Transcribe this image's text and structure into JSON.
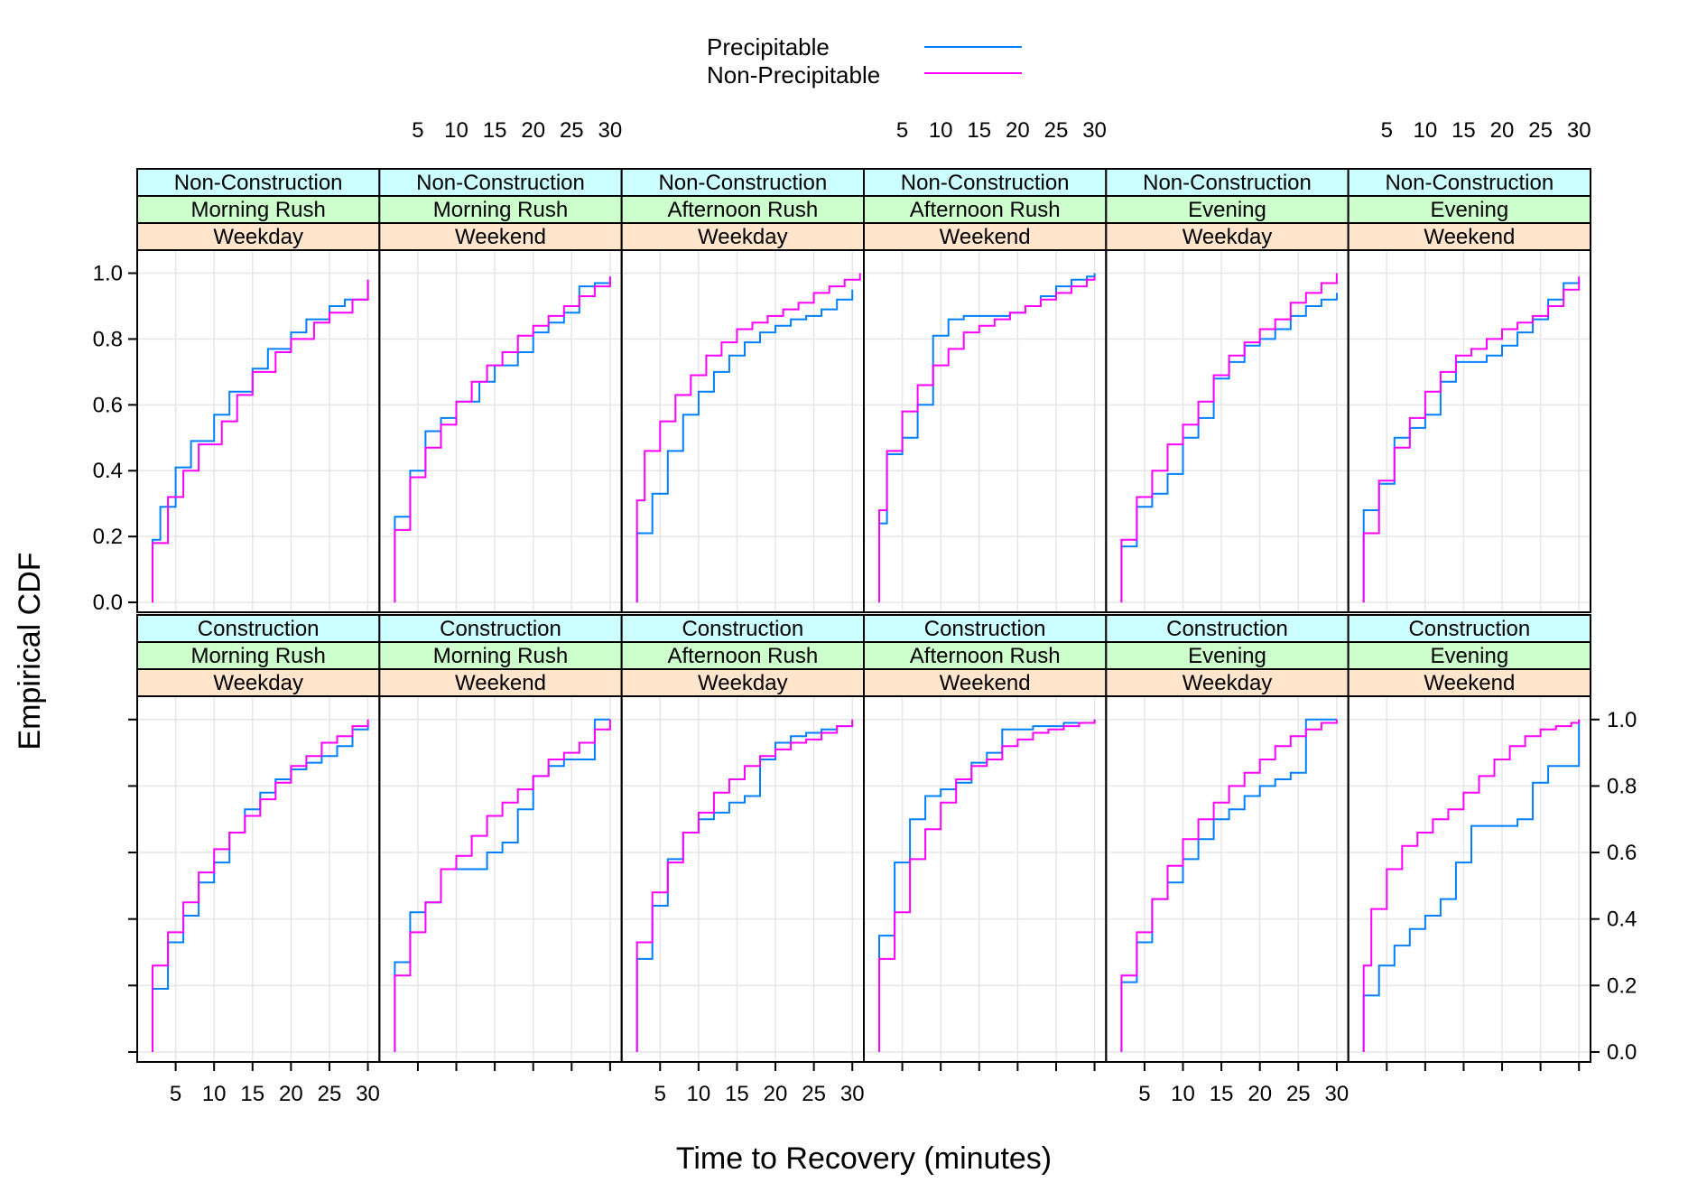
{
  "chart_data": {
    "type": "line",
    "step": true,
    "xlabel": "Time to Recovery (minutes)",
    "ylabel": "Empirical CDF",
    "xlim": [
      0,
      31.5
    ],
    "ylim": [
      -0.03,
      1.07
    ],
    "x_ticks": [
      5,
      10,
      15,
      20,
      25,
      30
    ],
    "y_ticks": [
      0.0,
      0.2,
      0.4,
      0.6,
      0.8,
      1.0
    ],
    "y_tick_labels": [
      "0.0",
      "0.2",
      "0.4",
      "0.6",
      "0.8",
      "1.0"
    ],
    "grid": true,
    "layout": {
      "columns": 6,
      "rows": 2
    },
    "legend": {
      "position": "top",
      "entries": [
        {
          "name": "Precipitable",
          "color": "#0080ff"
        },
        {
          "name": "Non-Precipitable",
          "color": "#ff00ff"
        }
      ]
    },
    "strip_colors": [
      "#ccffff",
      "#ccffcc",
      "#ffe5cc"
    ],
    "x_grid_step_values": [
      0,
      5,
      10,
      15,
      20,
      25,
      30
    ],
    "panels": [
      {
        "strips": [
          "Non-Construction",
          "Morning Rush",
          "Weekday"
        ],
        "series": [
          {
            "name": "Precipitable",
            "x": [
              2,
              3,
              5,
              7,
              10,
              12,
              15,
              17,
              20,
              22,
              25,
              27,
              30
            ],
            "y": [
              0.19,
              0.29,
              0.41,
              0.49,
              0.57,
              0.64,
              0.71,
              0.77,
              0.82,
              0.86,
              0.9,
              0.92,
              0.98
            ]
          },
          {
            "name": "Non-Precipitable",
            "x": [
              2,
              4,
              6,
              8,
              11,
              13,
              15,
              18,
              20,
              23,
              25,
              28,
              30
            ],
            "y": [
              0.18,
              0.32,
              0.4,
              0.48,
              0.55,
              0.63,
              0.7,
              0.76,
              0.8,
              0.85,
              0.88,
              0.92,
              0.98
            ]
          }
        ]
      },
      {
        "strips": [
          "Non-Construction",
          "Morning Rush",
          "Weekend"
        ],
        "series": [
          {
            "name": "Precipitable",
            "x": [
              2,
              4,
              6,
              8,
              10,
              13,
              15,
              18,
              20,
              22,
              24,
              26,
              28,
              30
            ],
            "y": [
              0.26,
              0.4,
              0.52,
              0.56,
              0.61,
              0.67,
              0.72,
              0.76,
              0.82,
              0.85,
              0.88,
              0.96,
              0.97,
              0.99
            ]
          },
          {
            "name": "Non-Precipitable",
            "x": [
              2,
              4,
              6,
              8,
              10,
              12,
              14,
              16,
              18,
              20,
              22,
              24,
              26,
              28,
              30
            ],
            "y": [
              0.22,
              0.38,
              0.47,
              0.54,
              0.61,
              0.67,
              0.72,
              0.76,
              0.81,
              0.84,
              0.87,
              0.9,
              0.93,
              0.96,
              0.99
            ]
          }
        ]
      },
      {
        "strips": [
          "Non-Construction",
          "Afternoon Rush",
          "Weekday"
        ],
        "series": [
          {
            "name": "Precipitable",
            "x": [
              2,
              4,
              6,
              8,
              10,
              12,
              14,
              16,
              18,
              20,
              22,
              24,
              26,
              28,
              30
            ],
            "y": [
              0.21,
              0.33,
              0.46,
              0.57,
              0.64,
              0.7,
              0.75,
              0.79,
              0.82,
              0.84,
              0.86,
              0.87,
              0.89,
              0.92,
              0.95
            ]
          },
          {
            "name": "Non-Precipitable",
            "x": [
              2,
              3,
              5,
              7,
              9,
              11,
              13,
              15,
              17,
              19,
              21,
              23,
              25,
              27,
              29,
              31
            ],
            "y": [
              0.31,
              0.46,
              0.55,
              0.63,
              0.69,
              0.75,
              0.79,
              0.83,
              0.85,
              0.87,
              0.89,
              0.91,
              0.94,
              0.96,
              0.98,
              1.0
            ]
          }
        ]
      },
      {
        "strips": [
          "Non-Construction",
          "Afternoon Rush",
          "Weekend"
        ],
        "series": [
          {
            "name": "Precipitable",
            "x": [
              2,
              3,
              5,
              7,
              9,
              11,
              13,
              15,
              17,
              19,
              21,
              23,
              25,
              27,
              29,
              30
            ],
            "y": [
              0.24,
              0.45,
              0.5,
              0.6,
              0.81,
              0.86,
              0.87,
              0.87,
              0.87,
              0.88,
              0.9,
              0.93,
              0.96,
              0.98,
              0.99,
              1.0
            ]
          },
          {
            "name": "Non-Precipitable",
            "x": [
              2,
              3,
              5,
              7,
              9,
              11,
              13,
              15,
              17,
              19,
              21,
              23,
              25,
              27,
              29,
              30
            ],
            "y": [
              0.28,
              0.46,
              0.58,
              0.66,
              0.72,
              0.77,
              0.82,
              0.84,
              0.86,
              0.88,
              0.9,
              0.92,
              0.94,
              0.96,
              0.98,
              0.99
            ]
          }
        ]
      },
      {
        "strips": [
          "Non-Construction",
          "Evening",
          "Weekday"
        ],
        "series": [
          {
            "name": "Precipitable",
            "x": [
              2,
              4,
              6,
              8,
              10,
              12,
              14,
              16,
              18,
              20,
              22,
              24,
              26,
              28,
              30
            ],
            "y": [
              0.17,
              0.29,
              0.33,
              0.39,
              0.5,
              0.56,
              0.68,
              0.73,
              0.78,
              0.8,
              0.83,
              0.87,
              0.9,
              0.92,
              0.94
            ]
          },
          {
            "name": "Non-Precipitable",
            "x": [
              2,
              4,
              6,
              8,
              10,
              12,
              14,
              16,
              18,
              20,
              22,
              24,
              26,
              28,
              30
            ],
            "y": [
              0.19,
              0.32,
              0.4,
              0.48,
              0.54,
              0.61,
              0.69,
              0.75,
              0.79,
              0.83,
              0.86,
              0.91,
              0.94,
              0.97,
              1.0
            ]
          }
        ]
      },
      {
        "strips": [
          "Non-Construction",
          "Evening",
          "Weekend"
        ],
        "series": [
          {
            "name": "Precipitable",
            "x": [
              2,
              4,
              6,
              8,
              10,
              12,
              14,
              16,
              18,
              20,
              22,
              24,
              26,
              28,
              30
            ],
            "y": [
              0.28,
              0.36,
              0.5,
              0.53,
              0.57,
              0.67,
              0.73,
              0.73,
              0.75,
              0.78,
              0.82,
              0.86,
              0.92,
              0.97,
              0.98
            ]
          },
          {
            "name": "Non-Precipitable",
            "x": [
              2,
              4,
              6,
              8,
              10,
              12,
              14,
              16,
              18,
              20,
              22,
              24,
              26,
              28,
              30
            ],
            "y": [
              0.21,
              0.37,
              0.47,
              0.56,
              0.64,
              0.7,
              0.75,
              0.77,
              0.8,
              0.83,
              0.85,
              0.87,
              0.9,
              0.95,
              0.99
            ]
          }
        ]
      },
      {
        "strips": [
          "Construction",
          "Morning Rush",
          "Weekday"
        ],
        "series": [
          {
            "name": "Precipitable",
            "x": [
              2,
              4,
              6,
              8,
              10,
              12,
              14,
              16,
              18,
              20,
              22,
              24,
              26,
              28,
              30
            ],
            "y": [
              0.19,
              0.33,
              0.41,
              0.51,
              0.57,
              0.66,
              0.73,
              0.78,
              0.82,
              0.85,
              0.87,
              0.89,
              0.92,
              0.97,
              0.99
            ]
          },
          {
            "name": "Non-Precipitable",
            "x": [
              2,
              4,
              6,
              8,
              10,
              12,
              14,
              16,
              18,
              20,
              22,
              24,
              26,
              28,
              30
            ],
            "y": [
              0.26,
              0.36,
              0.45,
              0.54,
              0.61,
              0.66,
              0.71,
              0.76,
              0.81,
              0.86,
              0.89,
              0.93,
              0.95,
              0.98,
              1.0
            ]
          }
        ]
      },
      {
        "strips": [
          "Construction",
          "Morning Rush",
          "Weekend"
        ],
        "series": [
          {
            "name": "Precipitable",
            "x": [
              2,
              4,
              6,
              8,
              10,
              12,
              14,
              16,
              18,
              20,
              22,
              24,
              26,
              28,
              30
            ],
            "y": [
              0.27,
              0.42,
              0.45,
              0.55,
              0.55,
              0.55,
              0.6,
              0.63,
              0.73,
              0.83,
              0.86,
              0.88,
              0.88,
              1.0,
              1.0
            ]
          },
          {
            "name": "Non-Precipitable",
            "x": [
              2,
              4,
              6,
              8,
              10,
              12,
              14,
              16,
              18,
              20,
              22,
              24,
              26,
              28,
              30
            ],
            "y": [
              0.23,
              0.36,
              0.45,
              0.55,
              0.59,
              0.65,
              0.71,
              0.75,
              0.79,
              0.83,
              0.88,
              0.9,
              0.93,
              0.97,
              1.0
            ]
          }
        ]
      },
      {
        "strips": [
          "Construction",
          "Afternoon Rush",
          "Weekday"
        ],
        "series": [
          {
            "name": "Precipitable",
            "x": [
              2,
              4,
              6,
              8,
              10,
              12,
              14,
              16,
              18,
              20,
              22,
              24,
              26,
              28,
              30
            ],
            "y": [
              0.28,
              0.44,
              0.58,
              0.66,
              0.7,
              0.72,
              0.75,
              0.77,
              0.88,
              0.93,
              0.95,
              0.96,
              0.97,
              0.98,
              0.99
            ]
          },
          {
            "name": "Non-Precipitable",
            "x": [
              2,
              4,
              6,
              8,
              10,
              12,
              14,
              16,
              18,
              20,
              22,
              24,
              26,
              28,
              30
            ],
            "y": [
              0.33,
              0.48,
              0.57,
              0.66,
              0.72,
              0.78,
              0.82,
              0.86,
              0.89,
              0.91,
              0.93,
              0.94,
              0.96,
              0.98,
              1.0
            ]
          }
        ]
      },
      {
        "strips": [
          "Construction",
          "Afternoon Rush",
          "Weekend"
        ],
        "series": [
          {
            "name": "Precipitable",
            "x": [
              2,
              4,
              6,
              8,
              10,
              12,
              14,
              16,
              18,
              20,
              22,
              24,
              26,
              28,
              30
            ],
            "y": [
              0.35,
              0.57,
              0.7,
              0.77,
              0.79,
              0.81,
              0.87,
              0.9,
              0.97,
              0.97,
              0.98,
              0.98,
              0.99,
              0.99,
              1.0
            ]
          },
          {
            "name": "Non-Precipitable",
            "x": [
              2,
              4,
              6,
              8,
              10,
              12,
              14,
              16,
              18,
              20,
              22,
              24,
              26,
              28,
              30
            ],
            "y": [
              0.28,
              0.42,
              0.58,
              0.67,
              0.75,
              0.82,
              0.86,
              0.88,
              0.92,
              0.94,
              0.96,
              0.97,
              0.98,
              0.99,
              1.0
            ]
          }
        ]
      },
      {
        "strips": [
          "Construction",
          "Evening",
          "Weekday"
        ],
        "series": [
          {
            "name": "Precipitable",
            "x": [
              2,
              4,
              6,
              8,
              10,
              12,
              14,
              16,
              18,
              20,
              22,
              24,
              26,
              28,
              30
            ],
            "y": [
              0.21,
              0.33,
              0.46,
              0.51,
              0.58,
              0.64,
              0.7,
              0.73,
              0.77,
              0.8,
              0.82,
              0.84,
              1.0,
              1.0,
              1.0
            ]
          },
          {
            "name": "Non-Precipitable",
            "x": [
              2,
              4,
              6,
              8,
              10,
              12,
              14,
              16,
              18,
              20,
              22,
              24,
              26,
              28,
              30
            ],
            "y": [
              0.23,
              0.36,
              0.46,
              0.56,
              0.64,
              0.7,
              0.75,
              0.8,
              0.84,
              0.88,
              0.92,
              0.95,
              0.97,
              0.99,
              1.0
            ]
          }
        ]
      },
      {
        "strips": [
          "Construction",
          "Evening",
          "Weekend"
        ],
        "series": [
          {
            "name": "Precipitable",
            "x": [
              2,
              4,
              6,
              8,
              10,
              12,
              14,
              16,
              18,
              20,
              22,
              24,
              26,
              28,
              30
            ],
            "y": [
              0.17,
              0.26,
              0.32,
              0.37,
              0.41,
              0.46,
              0.57,
              0.68,
              0.68,
              0.68,
              0.7,
              0.81,
              0.86,
              0.86,
              1.0
            ]
          },
          {
            "name": "Non-Precipitable",
            "x": [
              2,
              3,
              5,
              7,
              9,
              11,
              13,
              15,
              17,
              19,
              21,
              23,
              25,
              27,
              29,
              30
            ],
            "y": [
              0.26,
              0.43,
              0.55,
              0.62,
              0.66,
              0.7,
              0.73,
              0.78,
              0.83,
              0.88,
              0.92,
              0.95,
              0.97,
              0.98,
              0.99,
              1.0
            ]
          }
        ]
      }
    ]
  }
}
